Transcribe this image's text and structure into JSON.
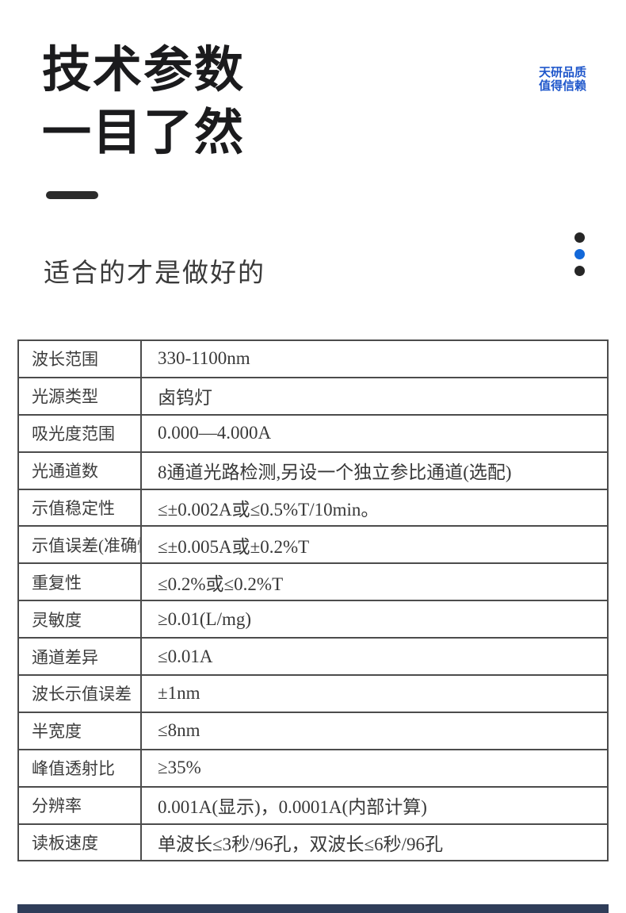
{
  "header": {
    "title_line1": "技术参数",
    "title_line2": "一目了然",
    "tagline_line1": "天研品质",
    "tagline_line2": "值得信赖",
    "subtitle": "适合的才是做好的",
    "tagline_color": "#1f57cb"
  },
  "decor": {
    "underline_color": "#2b2b2b",
    "dots": [
      {
        "name": "dot-dark-top",
        "color": "#262626"
      },
      {
        "name": "dot-blue-middle",
        "color": "#1268d9"
      },
      {
        "name": "dot-dark-bottom",
        "color": "#262626"
      }
    ],
    "bottom_bar_color": "#2f3d59"
  },
  "spec_table": {
    "border_color": "#4c4c4c",
    "rows": [
      {
        "label": "波长范围",
        "value": "330-1100nm"
      },
      {
        "label": "光源类型",
        "value": "卤钨灯"
      },
      {
        "label": "吸光度范围",
        "value": "0.000—4.000A"
      },
      {
        "label": "光通道数",
        "value": "8通道光路检测,另设一个独立参比通道(选配)"
      },
      {
        "label": "示值稳定性",
        "value": "≤±0.002A或≤0.5%T/10min。"
      },
      {
        "label": "示值误差(准确性)",
        "value": "≤±0.005A或±0.2%T"
      },
      {
        "label": "重复性",
        "value": "≤0.2%或≤0.2%T"
      },
      {
        "label": "灵敏度",
        "value": "≥0.01(L/mg)"
      },
      {
        "label": "通道差异",
        "value": "≤0.01A"
      },
      {
        "label": "波长示值误差",
        "value": "±1nm"
      },
      {
        "label": "半宽度",
        "value": "≤8nm"
      },
      {
        "label": "峰值透射比",
        "value": "≥35%"
      },
      {
        "label": "分辨率",
        "value": "0.001A(显示)，0.0001A(内部计算)"
      },
      {
        "label": "读板速度",
        "value": "单波长≤3秒/96孔，双波长≤6秒/96孔"
      }
    ]
  }
}
